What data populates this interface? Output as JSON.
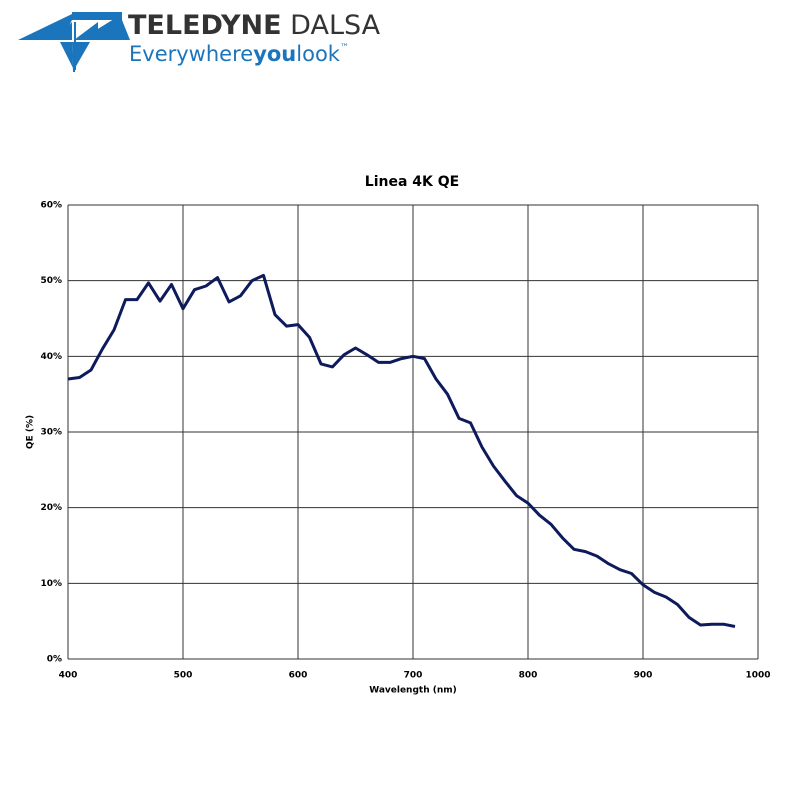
{
  "logo": {
    "brand_1": "TELEDYNE",
    "brand_2": "DALSA",
    "tagline_1": "Everywhere",
    "tagline_2": "you",
    "tagline_3": "look",
    "trademark": "™"
  },
  "chart_data": {
    "type": "line",
    "title": "Linea 4K QE",
    "x_label": "Wavelength (nm)",
    "y_label": "QE (%)",
    "xlim": [
      400,
      1000
    ],
    "xticks": [
      400,
      500,
      600,
      700,
      800,
      900,
      1000
    ],
    "ylim": [
      0,
      60
    ],
    "yticks": [
      {
        "value": 0,
        "label": "0%"
      },
      {
        "value": 10,
        "label": "10%"
      },
      {
        "value": 20,
        "label": "20%"
      },
      {
        "value": 30,
        "label": "30%"
      },
      {
        "value": 40,
        "label": "40%"
      },
      {
        "value": 50,
        "label": "50%"
      },
      {
        "value": 60,
        "label": "60%"
      }
    ],
    "grid": true,
    "x": [
      400,
      410,
      420,
      430,
      440,
      450,
      460,
      470,
      480,
      490,
      500,
      510,
      520,
      530,
      540,
      550,
      560,
      570,
      580,
      590,
      600,
      610,
      620,
      630,
      640,
      650,
      660,
      670,
      680,
      690,
      700,
      710,
      720,
      730,
      740,
      750,
      760,
      770,
      780,
      790,
      800,
      810,
      820,
      830,
      840,
      850,
      860,
      870,
      880,
      890,
      900,
      910,
      920,
      930,
      940,
      950,
      960,
      970,
      980
    ],
    "series": [
      {
        "color": "#0d1a5c",
        "values": [
          37,
          37.2,
          38.2,
          41,
          43.5,
          47.5,
          47.5,
          49.7,
          47.3,
          49.5,
          46.3,
          48.8,
          49.3,
          50.4,
          47.2,
          48,
          50,
          50.7,
          45.5,
          44,
          44.2,
          42.5,
          39,
          38.6,
          40.2,
          41.1,
          40.2,
          39.2,
          39.2,
          39.7,
          40,
          39.7,
          37,
          35,
          31.8,
          31.2,
          28,
          25.5,
          23.5,
          21.6,
          20.6,
          19,
          17.8,
          16,
          14.5,
          14.2,
          13.6,
          12.6,
          11.8,
          11.3,
          9.8,
          8.8,
          8.2,
          7.2,
          5.5,
          4.5,
          4.6,
          4.6,
          4.3
        ]
      }
    ]
  }
}
